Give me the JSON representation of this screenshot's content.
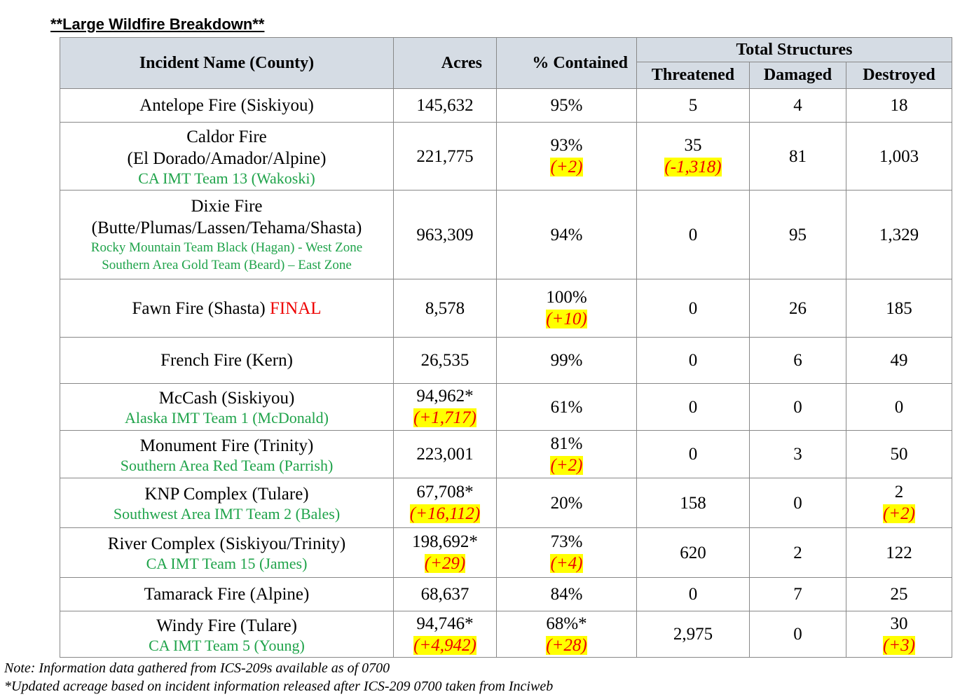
{
  "title": "**Large Wildfire Breakdown**",
  "table": {
    "header": {
      "incident": "Incident Name (County)",
      "acres": "Acres",
      "contained": "% Contained",
      "structures": "Total Structures",
      "threatened": "Threatened",
      "damaged": "Damaged",
      "destroyed": "Destroyed"
    },
    "rows": [
      {
        "name": [
          "Antelope Fire (Siskiyou)"
        ],
        "acres": "145,632",
        "contained": "95%",
        "threatened": "5",
        "damaged": "4",
        "destroyed": "18"
      },
      {
        "name": [
          "Caldor Fire",
          "(El Dorado/Amador/Alpine)"
        ],
        "teams": [
          "CA IMT Team 13 (Wakoski)"
        ],
        "acres": "221,775",
        "contained": "93%",
        "contained_change": "(+2)",
        "threatened": "35",
        "threatened_change": "(-1,318)",
        "damaged": "81",
        "destroyed": "1,003"
      },
      {
        "name": [
          "Dixie Fire",
          "(Butte/Plumas/Lassen/Tehama/Shasta)"
        ],
        "teams": [
          "Rocky Mountain Team Black (Hagan) - West Zone",
          "Southern Area Gold Team (Beard) – East Zone"
        ],
        "acres": "963,309",
        "contained": "94%",
        "threatened": "0",
        "damaged": "95",
        "destroyed": "1,329"
      },
      {
        "name": [
          "Fawn Fire (Shasta)"
        ],
        "final": "FINAL",
        "acres": "8,578",
        "contained": "100%",
        "contained_change": "(+10)",
        "threatened": "0",
        "damaged": "26",
        "destroyed": "185"
      },
      {
        "name": [
          "French Fire (Kern)"
        ],
        "acres": "26,535",
        "contained": "99%",
        "threatened": "0",
        "damaged": "6",
        "destroyed": "49"
      },
      {
        "name": [
          "McCash (Siskiyou)"
        ],
        "teams": [
          "Alaska IMT Team 1 (McDonald)"
        ],
        "acres": "94,962*",
        "acres_change": "(+1,717)",
        "contained": "61%",
        "threatened": "0",
        "damaged": "0",
        "destroyed": "0"
      },
      {
        "name": [
          "Monument Fire (Trinity)"
        ],
        "teams": [
          "Southern Area Red Team (Parrish)"
        ],
        "acres": "223,001",
        "contained": "81%",
        "contained_change": "(+2)",
        "threatened": "0",
        "damaged": "3",
        "destroyed": "50"
      },
      {
        "name": [
          "KNP Complex (Tulare)"
        ],
        "teams": [
          "Southwest Area IMT Team 2 (Bales)"
        ],
        "acres": "67,708*",
        "acres_change": "(+16,112)",
        "contained": "20%",
        "threatened": "158",
        "damaged": "0",
        "destroyed": "2",
        "destroyed_change": "(+2)"
      },
      {
        "name": [
          "River Complex (Siskiyou/Trinity)"
        ],
        "teams": [
          "CA IMT Team 15 (James)"
        ],
        "acres": "198,692*",
        "acres_change": "(+29)",
        "contained": "73%",
        "contained_change": "(+4)",
        "threatened": "620",
        "damaged": "2",
        "destroyed": "122"
      },
      {
        "name": [
          "Tamarack Fire (Alpine)"
        ],
        "acres": "68,637",
        "contained": "84%",
        "threatened": "0",
        "damaged": "7",
        "destroyed": "25"
      },
      {
        "name": [
          "Windy Fire (Tulare)"
        ],
        "teams": [
          "CA IMT Team 5 (Young)"
        ],
        "acres": "94,746*",
        "acres_change": "(+4,942)",
        "contained": "68%*",
        "contained_change": "(+28)",
        "threatened": "2,975",
        "damaged": "0",
        "destroyed": "30",
        "destroyed_change": "(+3)"
      }
    ]
  },
  "notes": [
    "Note: Information data gathered from ICS-209s available as of 0700",
    "*Updated acreage based on incident information released after ICS-209 0700 taken from Inciweb"
  ]
}
